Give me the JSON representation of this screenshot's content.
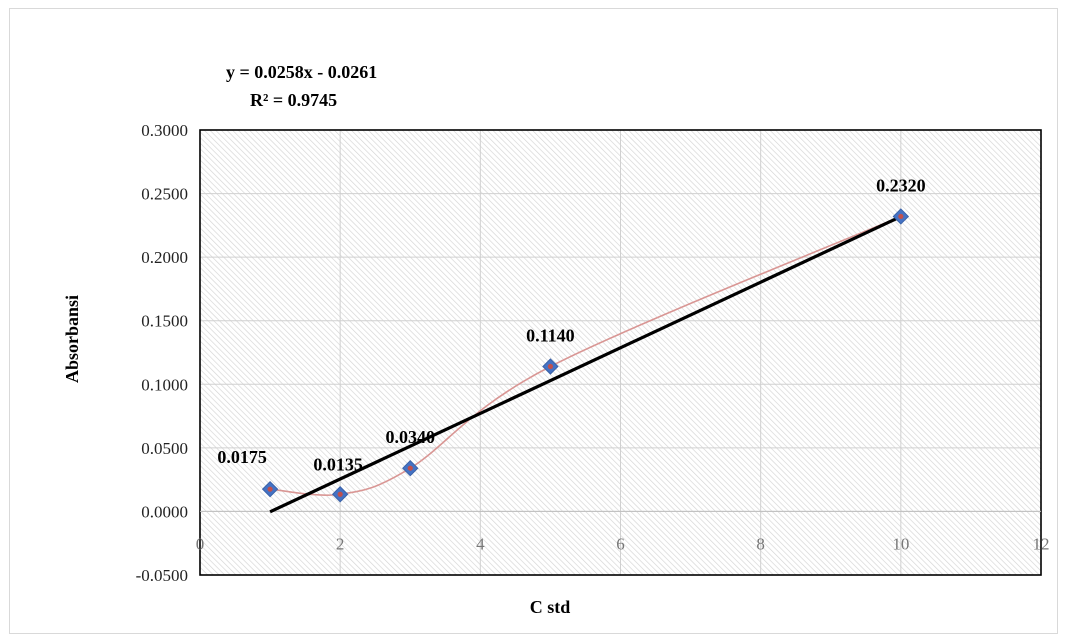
{
  "chart_data": {
    "type": "scatter",
    "xlabel": "C std",
    "ylabel": "Absorbansi",
    "xlim": [
      0,
      12
    ],
    "ylim": [
      -0.05,
      0.3
    ],
    "x_ticks": [
      "0",
      "2",
      "4",
      "6",
      "8",
      "10",
      "12"
    ],
    "y_ticks": [
      "-0.0500",
      "0.0000",
      "0.0500",
      "0.1000",
      "0.1500",
      "0.2000",
      "0.2500",
      "0.3000"
    ],
    "grid": true,
    "legend": "none",
    "series": [
      {
        "x": [
          1,
          2,
          3,
          5,
          10
        ],
        "y": [
          0.0175,
          0.0135,
          0.034,
          0.114,
          0.232
        ],
        "labels": [
          "0.0175",
          "0.0135",
          "0.0340",
          "0.1140",
          "0.2320"
        ],
        "marker": "diamond",
        "marker_color": "#4472c4",
        "marker_inner_color": "#c0504d",
        "smooth_line_color": "#d99694"
      }
    ],
    "trendline": {
      "type": "linear",
      "slope": 0.0258,
      "intercept": -0.0261,
      "x_range": [
        1,
        10
      ],
      "color": "#000000",
      "equation": "y = 0.0258x - 0.0261",
      "r_squared": "R² = 0.9745"
    }
  }
}
